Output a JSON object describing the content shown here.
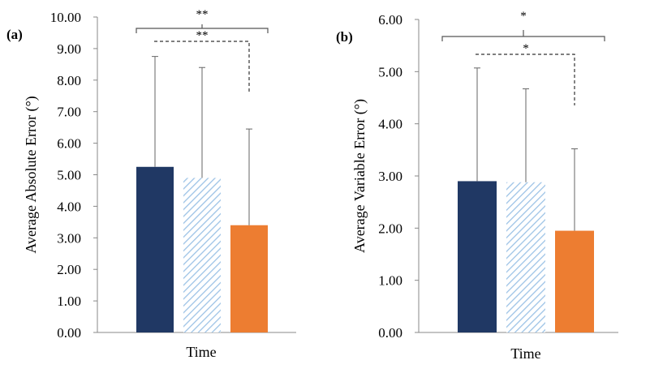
{
  "chart_data": [
    {
      "panel_label": "(a)",
      "type": "bar",
      "ylabel": "Average Absolute Error (°)",
      "xlabel": "Time",
      "ylim": [
        0,
        10
      ],
      "y_tick_values": [
        0,
        1,
        2,
        3,
        4,
        5,
        6,
        7,
        8,
        9,
        10
      ],
      "y_tick_labels": [
        "0.00",
        "1.00",
        "2.00",
        "3.00",
        "4.00",
        "5.00",
        "6.00",
        "7.00",
        "8.00",
        "9.00",
        "10.00"
      ],
      "bars": [
        {
          "value": 5.25,
          "error": 3.5,
          "color": "#203864",
          "fill": "solid"
        },
        {
          "value": 4.9,
          "error": 3.5,
          "color": "#9DC3E6",
          "fill": "hatched"
        },
        {
          "value": 3.4,
          "error": 3.05,
          "color": "#ED7D31",
          "fill": "solid"
        }
      ],
      "significance": [
        {
          "from": 0,
          "to": 2,
          "label": "**",
          "style": "solid"
        },
        {
          "from": 0,
          "to": 2,
          "label": "**",
          "style": "dashed"
        }
      ]
    },
    {
      "panel_label": "(b)",
      "type": "bar",
      "ylabel": "Average Variable Error (°)",
      "xlabel": "Time",
      "ylim": [
        0,
        6
      ],
      "y_tick_values": [
        0,
        1,
        2,
        3,
        4,
        5,
        6
      ],
      "y_tick_labels": [
        "0.00",
        "1.00",
        "2.00",
        "3.00",
        "4.00",
        "5.00",
        "6.00"
      ],
      "bars": [
        {
          "value": 2.9,
          "error": 2.17,
          "color": "#203864",
          "fill": "solid"
        },
        {
          "value": 2.88,
          "error": 1.79,
          "color": "#9DC3E6",
          "fill": "hatched"
        },
        {
          "value": 1.95,
          "error": 1.57,
          "color": "#ED7D31",
          "fill": "solid"
        }
      ],
      "significance": [
        {
          "from": 0,
          "to": 2,
          "label": "*",
          "style": "solid"
        },
        {
          "from": 0,
          "to": 2,
          "label": "*",
          "style": "dashed"
        }
      ]
    }
  ]
}
